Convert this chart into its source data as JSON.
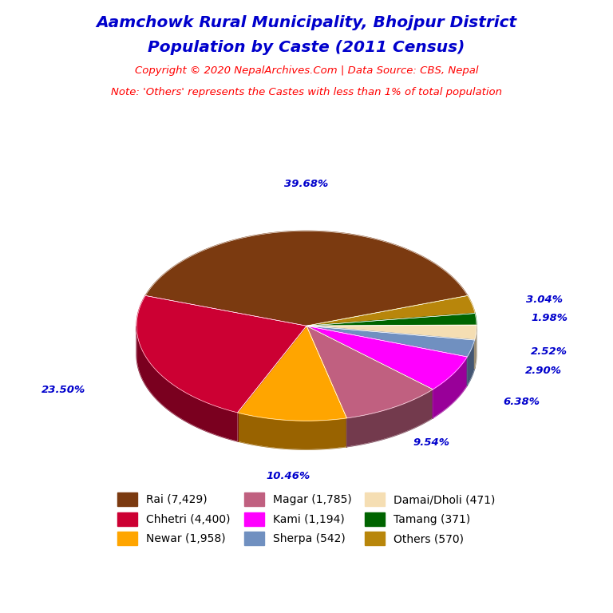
{
  "title_line1": "Aamchowk Rural Municipality, Bhojpur District",
  "title_line2": "Population by Caste (2011 Census)",
  "title_color": "#0000CC",
  "copyright_text": "Copyright © 2020 NepalArchives.Com | Data Source: CBS, Nepal",
  "note_text": "Note: 'Others' represents the Castes with less than 1% of total population",
  "subtitle_color": "#FF0000",
  "labels": [
    "Rai",
    "Chhetri",
    "Newar",
    "Magar",
    "Kami",
    "Sherpa",
    "Damai/Dholi",
    "Tamang",
    "Others"
  ],
  "values": [
    7429,
    4400,
    1958,
    1785,
    1194,
    542,
    471,
    371,
    570
  ],
  "percentages": [
    39.68,
    23.5,
    10.46,
    9.54,
    6.38,
    2.9,
    2.52,
    1.98,
    3.04
  ],
  "colors": [
    "#7B3A10",
    "#CC0033",
    "#FFA500",
    "#C06080",
    "#FF00FF",
    "#7090C0",
    "#F5DEB3",
    "#006400",
    "#B8860B"
  ],
  "pct_label_color": "#0000CC",
  "background_color": "#FFFFFF",
  "slice_order": [
    "Rai",
    "Others",
    "Tamang",
    "Damai/Dholi",
    "Sherpa",
    "Kami",
    "Magar",
    "Newar",
    "Chhetri"
  ],
  "legend_order": [
    "Rai",
    "Chhetri",
    "Newar",
    "Magar",
    "Kami",
    "Sherpa",
    "Damai/Dholi",
    "Tamang",
    "Others"
  ],
  "legend_display": [
    "Rai (7,429)",
    "Chhetri (4,400)",
    "Newar (1,958)",
    "Magar (1,785)",
    "Kami (1,194)",
    "Sherpa (542)",
    "Damai/Dholi (471)",
    "Tamang (371)",
    "Others (570)"
  ]
}
